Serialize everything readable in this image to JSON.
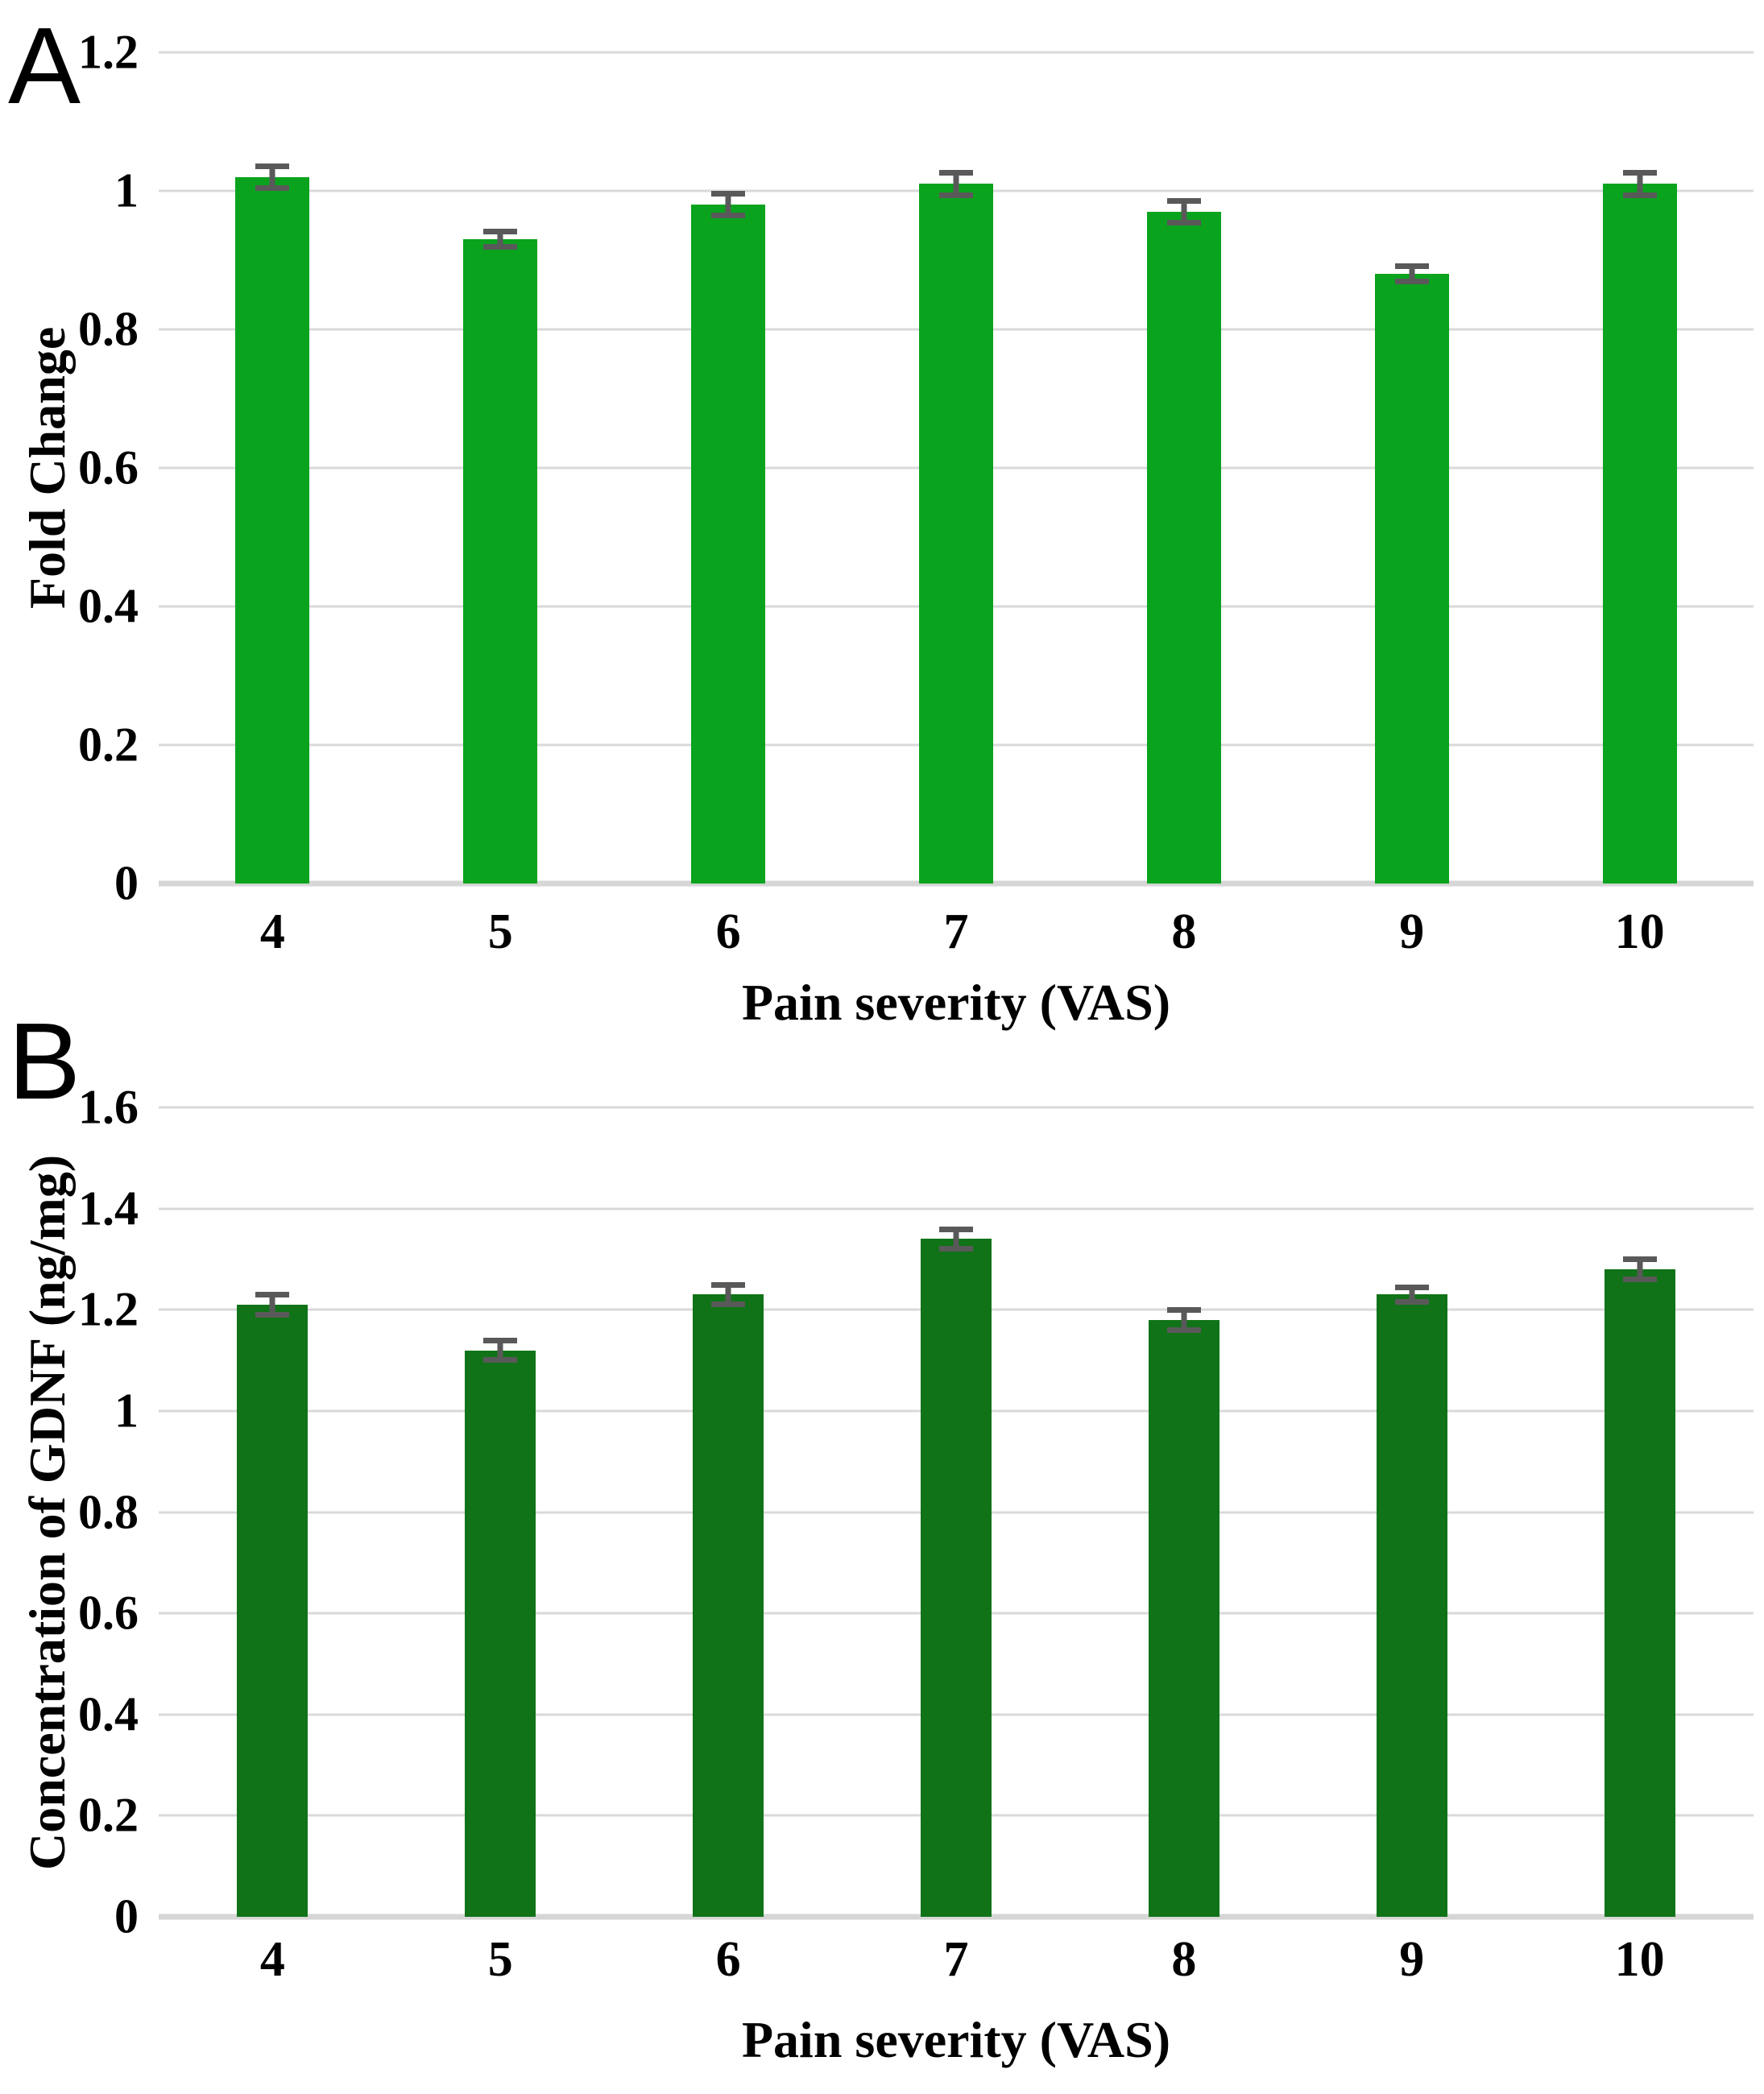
{
  "figure": {
    "background": "#ffffff",
    "text_color": "#000000",
    "gridline_color": "#d9d9d9",
    "error_bar_color": "#595959"
  },
  "panels": [
    {
      "letter": "A"
    },
    {
      "letter": "B"
    }
  ],
  "chart_data": [
    {
      "type": "bar",
      "panel": "A",
      "title": "",
      "categories": [
        "4",
        "5",
        "6",
        "7",
        "8",
        "9",
        "10"
      ],
      "values": [
        1.02,
        0.93,
        0.98,
        1.01,
        0.97,
        0.88,
        1.01
      ],
      "errors": [
        0.02,
        0.015,
        0.02,
        0.02,
        0.02,
        0.015,
        0.02
      ],
      "xlabel": "Pain severity (VAS)",
      "ylabel": "Fold Change",
      "ylim": [
        0,
        1.2
      ],
      "yticks": [
        "1.2",
        "1",
        "0.8",
        "0.6",
        "0.4",
        "0.2",
        "0"
      ],
      "grid": true,
      "legend": "none",
      "bar_color": "#0aa31e"
    },
    {
      "type": "bar",
      "panel": "B",
      "title": "",
      "categories": [
        "4",
        "5",
        "6",
        "7",
        "8",
        "9",
        "10"
      ],
      "values": [
        1.21,
        1.12,
        1.23,
        1.34,
        1.18,
        1.23,
        1.28
      ],
      "errors": [
        0.025,
        0.025,
        0.025,
        0.025,
        0.025,
        0.02,
        0.025
      ],
      "xlabel": "Pain severity (VAS)",
      "ylabel": "Concentration of GDNF (ng/mg)",
      "ylim": [
        0,
        1.6
      ],
      "yticks": [
        "1.6",
        "1.4",
        "1.2",
        "1",
        "0.8",
        "0.6",
        "0.4",
        "0.2",
        "0"
      ],
      "grid": true,
      "legend": "none",
      "bar_color": "#107317"
    }
  ]
}
